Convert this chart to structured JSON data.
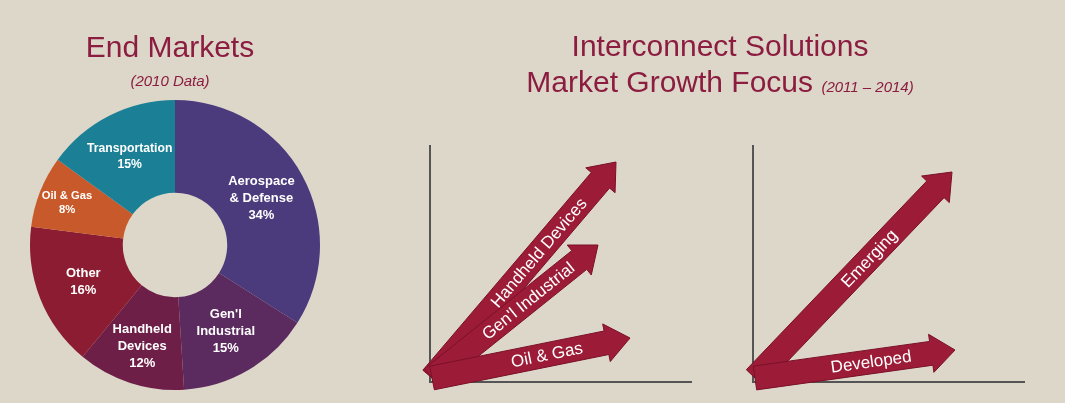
{
  "chart_data": [
    {
      "type": "donut",
      "title": "End Markets",
      "subtitle": "(2010 Data)",
      "categories": [
        "Aerospace & Defense",
        "Gen'l Industrial",
        "Handheld Devices",
        "Other",
        "Oil & Gas",
        "Transportation"
      ],
      "values": [
        34,
        15,
        12,
        16,
        8,
        15
      ],
      "value_labels": [
        "34%",
        "15%",
        "12%",
        "16%",
        "8%",
        "15%"
      ],
      "colors": [
        "#4b3b7d",
        "#5b2a5f",
        "#6e1f47",
        "#8c1c31",
        "#c8592a",
        "#1b8096"
      ]
    },
    {
      "type": "other",
      "title": "Interconnect Solutions\nMarket Growth Focus",
      "subtitle": "(2011 – 2014)",
      "annotations": [
        "Handheld Devices",
        "Gen'l Industrial",
        "Oil & Gas",
        "Emerging",
        "Developed"
      ]
    }
  ]
}
